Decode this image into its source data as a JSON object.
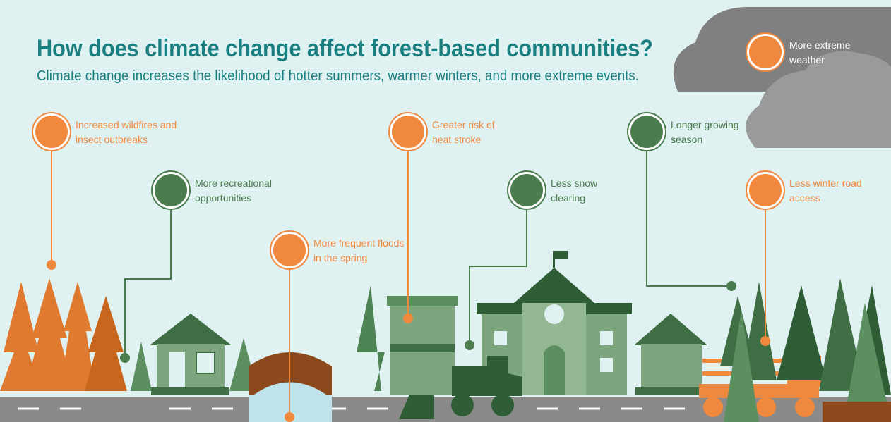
{
  "title": "How does climate change affect forest-based communities?",
  "subtitle": "Climate change increases the likelihood of hotter summers, warmer winters, and more extreme events.",
  "callouts": [
    {
      "lines": [
        "Increased wildfires and",
        "insect outbreaks"
      ]
    },
    {
      "lines": [
        "More recreational",
        "opportunities"
      ]
    },
    {
      "lines": [
        "More frequent floods",
        "in the spring"
      ]
    },
    {
      "lines": [
        "Greater risk of",
        "heat stroke"
      ]
    },
    {
      "lines": [
        "Less snow",
        "clearing"
      ]
    },
    {
      "lines": [
        "Longer growing",
        "season"
      ]
    },
    {
      "lines": [
        "Less winter road",
        "access"
      ]
    },
    {
      "lines": [
        "More extreme",
        "weather"
      ]
    }
  ]
}
